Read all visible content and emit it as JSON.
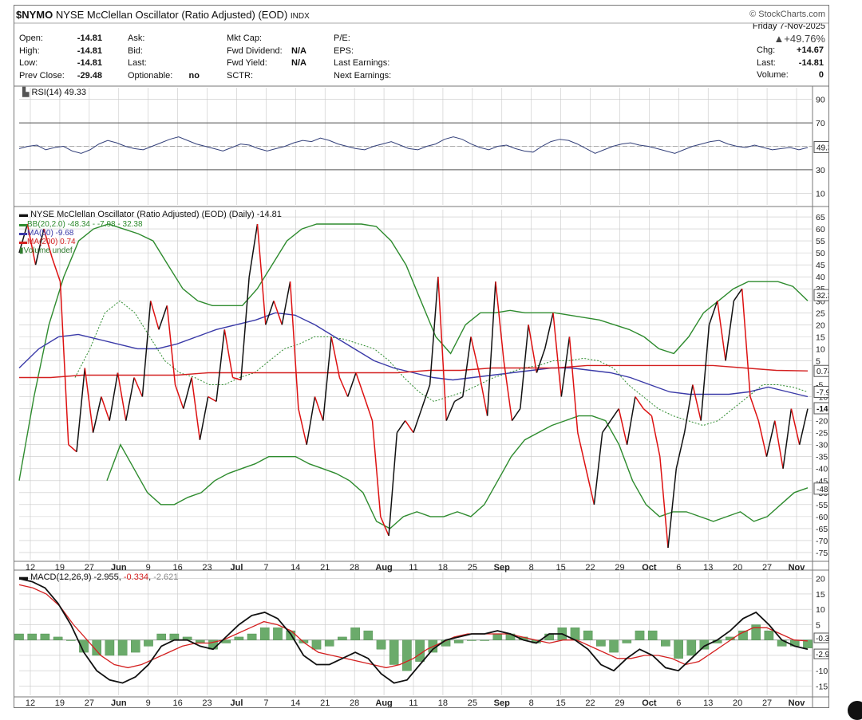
{
  "header": {
    "symbol": "$NYMO",
    "name": "NYSE McClellan Oscillator (Ratio Adjusted) (EOD)",
    "exchange": "INDX",
    "copyright": "© StockCharts.com",
    "date": "Friday  7-Nov-2025",
    "change_pct": "▲+49.76%"
  },
  "quote": {
    "col1": [
      {
        "label": "Open:",
        "value": "-14.81"
      },
      {
        "label": "High:",
        "value": "-14.81"
      },
      {
        "label": "Low:",
        "value": "-14.81"
      },
      {
        "label": "Prev Close:",
        "value": "-29.48"
      }
    ],
    "col2": [
      {
        "label": "Ask:",
        "value": ""
      },
      {
        "label": "Bid:",
        "value": ""
      },
      {
        "label": "Last:",
        "value": ""
      },
      {
        "label": "Optionable:",
        "value": "no"
      }
    ],
    "col3": [
      {
        "label": "Mkt Cap:",
        "value": ""
      },
      {
        "label": "Fwd Dividend:",
        "value": "N/A"
      },
      {
        "label": "Fwd Yield:",
        "value": "N/A"
      },
      {
        "label": "SCTR:",
        "value": ""
      }
    ],
    "col4": [
      {
        "label": "P/E:",
        "value": ""
      },
      {
        "label": "EPS:",
        "value": ""
      },
      {
        "label": "Last Earnings:",
        "value": ""
      },
      {
        "label": "Next Earnings:",
        "value": ""
      }
    ],
    "col5": [
      {
        "label": "Chg:",
        "value": "+14.67"
      },
      {
        "label": "Last:",
        "value": "-14.81"
      },
      {
        "label": "Volume:",
        "value": "0"
      }
    ]
  },
  "colors": {
    "price_up": "#111111",
    "price_down": "#dd1111",
    "bb": "#2e8b2e",
    "ma50": "#3a3aa8",
    "ma200": "#d42020",
    "rsi": "#33407a",
    "macd_line": "#111111",
    "macd_signal": "#d42020",
    "histogram": "#6bab6b",
    "grid": "#c8c8c8"
  },
  "chart_data": [
    {
      "type": "line",
      "panel": "rsi",
      "legend": "RSI(14) 49.33",
      "current": "49.33",
      "yticks": [
        "90",
        "70",
        "50",
        "30",
        "10"
      ],
      "ylim": [
        0,
        100
      ],
      "reference_lines": [
        70,
        30
      ],
      "series": [
        {
          "name": "RSI(14)",
          "values": [
            48,
            50,
            51,
            47,
            49,
            50,
            46,
            44,
            47,
            52,
            55,
            53,
            50,
            48,
            47,
            50,
            53,
            56,
            58,
            55,
            52,
            50,
            48,
            46,
            49,
            52,
            51,
            48,
            46,
            48,
            50,
            53,
            55,
            54,
            57,
            55,
            52,
            50,
            48,
            47,
            50,
            52,
            54,
            51,
            48,
            47,
            50,
            52,
            56,
            58,
            56,
            52,
            49,
            47,
            50,
            51,
            48,
            46,
            45,
            50,
            54,
            56,
            55,
            52,
            48,
            44,
            47,
            50,
            52,
            53,
            51,
            50,
            48,
            46,
            44,
            47,
            50,
            52,
            54,
            55,
            52,
            50,
            49,
            51,
            49,
            47,
            48,
            49,
            47,
            49
          ]
        }
      ]
    },
    {
      "type": "line",
      "panel": "price",
      "legend": [
        "NYSE McClellan Oscillator (Ratio Adjusted) (EOD) (Daily) -14.81",
        "BB(20,2.0) -48.34 - -7.98 - 32.38",
        "MA(50) -9.68",
        "MA(200) 0.74",
        "Volume undef"
      ],
      "x_tick_labels": [
        "12",
        "19",
        "27",
        "Jun",
        "9",
        "16",
        "23",
        "Jul",
        "7",
        "14",
        "21",
        "28",
        "Aug",
        "11",
        "18",
        "25",
        "Sep",
        "8",
        "15",
        "22",
        "29",
        "Oct",
        "6",
        "13",
        "20",
        "27",
        "Nov"
      ],
      "yticks": [
        "65",
        "60",
        "55",
        "50",
        "45",
        "40",
        "35",
        "30",
        "25",
        "20",
        "15",
        "10",
        "5",
        "-5",
        "-10",
        "-15",
        "-20",
        "-25",
        "-30",
        "-35",
        "-40",
        "-45",
        "-50",
        "-55",
        "-60",
        "-65",
        "-70",
        "-75"
      ],
      "ylim": [
        -78,
        68
      ],
      "value_tags": [
        "32.38",
        "0.74",
        "-7.98",
        "-14.81",
        "-48.34"
      ],
      "series": [
        {
          "name": "NYSE McClellan Oscillator (Ratio Adjusted) (EOD)",
          "values": [
            50,
            62,
            45,
            60,
            48,
            38,
            -30,
            -33,
            2,
            -25,
            -10,
            -20,
            0,
            -20,
            -2,
            -10,
            30,
            18,
            28,
            -5,
            -15,
            -2,
            -28,
            -10,
            -12,
            18,
            -2,
            -3,
            40,
            62,
            20,
            30,
            20,
            38,
            -15,
            -30,
            -10,
            -20,
            15,
            -2,
            -10,
            0,
            -10,
            -20,
            -60,
            -68,
            -25,
            -20,
            -25,
            -15,
            -5,
            40,
            -20,
            -12,
            -10,
            15,
            0,
            -18,
            38,
            5,
            -20,
            -15,
            20,
            0,
            10,
            25,
            -10,
            15,
            -25,
            -40,
            -55,
            -25,
            -20,
            -15,
            -30,
            -10,
            -15,
            -18,
            -35,
            -73,
            -40,
            -25,
            -5,
            -20,
            20,
            30,
            5,
            30,
            35,
            -10,
            -20,
            -35,
            -20,
            -40,
            -15,
            -30,
            -15
          ]
        },
        {
          "name": "BB upper",
          "values": [
            -45,
            -10,
            20,
            40,
            55,
            60,
            62,
            60,
            58,
            55,
            45,
            35,
            30,
            28,
            28,
            28,
            35,
            45,
            55,
            60,
            62,
            62,
            62,
            62,
            61,
            55,
            45,
            30,
            15,
            8,
            20,
            25,
            25,
            26,
            25,
            25,
            25,
            24,
            23,
            22,
            20,
            18,
            15,
            10,
            8,
            15,
            25,
            30,
            35,
            38,
            38,
            38,
            36,
            30
          ]
        },
        {
          "name": "BB lower",
          "values": [
            -45,
            -30,
            -40,
            -50,
            -55,
            -55,
            -52,
            -50,
            -45,
            -42,
            -40,
            -38,
            -35,
            -35,
            -35,
            -38,
            -40,
            -42,
            -45,
            -50,
            -62,
            -65,
            -60,
            -58,
            -60,
            -60,
            -58,
            -60,
            -55,
            -45,
            -35,
            -28,
            -25,
            -22,
            -20,
            -18,
            -18,
            -20,
            -30,
            -45,
            -55,
            -60,
            -58,
            -58,
            -60,
            -62,
            -60,
            -58,
            -62,
            -60,
            -55,
            -50,
            -48
          ]
        },
        {
          "name": "BB middle",
          "values": [
            -2,
            10,
            25,
            30,
            25,
            15,
            5,
            0,
            -2,
            -5,
            -5,
            -2,
            0,
            5,
            10,
            12,
            15,
            15,
            14,
            12,
            10,
            5,
            -2,
            -8,
            -12,
            -10,
            -8,
            -5,
            -2,
            0,
            2,
            3,
            5,
            5,
            6,
            5,
            2,
            -5,
            -10,
            -15,
            -18,
            -20,
            -22,
            -20,
            -15,
            -10,
            -5,
            -5,
            -6,
            -8
          ]
        },
        {
          "name": "MA(50)",
          "values": [
            2,
            10,
            15,
            16,
            14,
            12,
            10,
            10,
            12,
            15,
            18,
            20,
            22,
            25,
            24,
            20,
            15,
            10,
            5,
            2,
            0,
            -2,
            -3,
            -2,
            -1,
            0,
            1,
            2,
            2,
            1,
            0,
            -2,
            -5,
            -8,
            -9,
            -9,
            -9,
            -8,
            -6,
            -8,
            -10
          ]
        },
        {
          "name": "MA(200)",
          "values": [
            -2,
            -2,
            -1,
            -1,
            -1,
            -1,
            0,
            0,
            0,
            0,
            0,
            0,
            0,
            1,
            1,
            2,
            2,
            2,
            3,
            3,
            3,
            3,
            3,
            2,
            1,
            0.74
          ]
        }
      ]
    },
    {
      "type": "line",
      "panel": "macd",
      "legend": [
        "MACD(12,26,9) -2.955",
        "-0.334",
        "-2.621"
      ],
      "current": [
        "-0.334",
        "-2.955"
      ],
      "yticks": [
        "20",
        "15",
        "10",
        "5",
        "-5",
        "-10",
        "-15"
      ],
      "ylim": [
        -18,
        22
      ],
      "series": [
        {
          "name": "MACD",
          "values": [
            20,
            19,
            17,
            12,
            5,
            -4,
            -10,
            -13,
            -14,
            -12,
            -8,
            -2,
            0,
            0,
            -2,
            -3,
            1,
            5,
            8,
            9,
            7,
            2,
            -5,
            -8,
            -8,
            -6,
            -4,
            -6,
            -11,
            -14,
            -13,
            -8,
            -3,
            0,
            1,
            2,
            2,
            3,
            2,
            0,
            -1,
            2,
            2,
            0,
            -3,
            -8,
            -10,
            -6,
            -3,
            -5,
            -9,
            -10,
            -6,
            -2,
            0,
            3,
            7,
            9,
            5,
            0,
            -2,
            -3
          ]
        },
        {
          "name": "Signal",
          "values": [
            18,
            17,
            15,
            11,
            5,
            0,
            -5,
            -8,
            -9,
            -8,
            -6,
            -4,
            -2,
            -1,
            -1,
            0,
            2,
            4,
            6,
            5,
            3,
            -1,
            -4,
            -5,
            -6,
            -7,
            -8,
            -9,
            -8,
            -6,
            -3,
            -1,
            1,
            2,
            2,
            2,
            2,
            1,
            0,
            -1,
            0,
            0,
            -2,
            -4,
            -6,
            -6,
            -5,
            -5,
            -6,
            -8,
            -7,
            -4,
            -1,
            2,
            4,
            4,
            2,
            0,
            -0.3
          ]
        },
        {
          "name": "Histogram",
          "values": [
            2,
            2,
            2,
            1,
            0,
            -4,
            -5,
            -5,
            -5,
            -4,
            -2,
            2,
            2,
            1,
            -1,
            -3,
            -1,
            1,
            2,
            4,
            4,
            3,
            -1,
            -3,
            -2,
            1,
            4,
            3,
            -3,
            -8,
            -10,
            -7,
            -4,
            -2,
            -1,
            0,
            0,
            2,
            2,
            1,
            -1,
            2,
            4,
            4,
            3,
            -2,
            -4,
            -1,
            3,
            3,
            -2,
            -6,
            -5,
            -3,
            -1,
            1,
            3,
            5,
            3,
            -2,
            -2,
            -2.6
          ]
        }
      ]
    }
  ]
}
